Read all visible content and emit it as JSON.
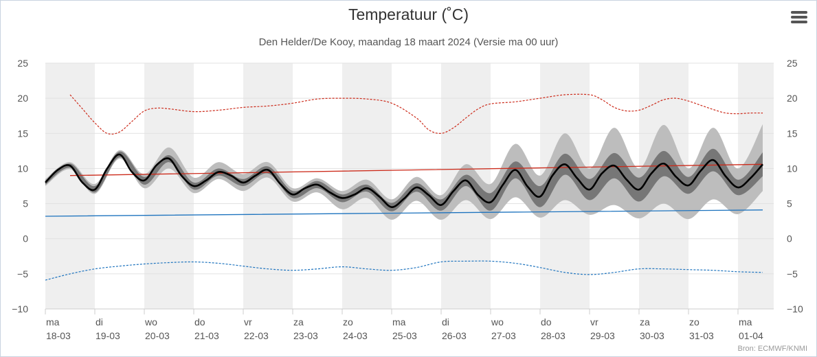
{
  "title": "Temperatuur (˚C)",
  "subtitle": "Den Helder/De Kooy, maandag 18 maart 2024 (Versie ma 00 uur)",
  "credit": "Bron: ECMWF/KNMI",
  "menu_icon": "hamburger-menu-icon",
  "colors": {
    "mean": "#000000",
    "band_inner": "#777777",
    "band_outer": "#bdbdbd",
    "max_extreme": "#cc2a1a",
    "min_extreme": "#1d73be",
    "climate_max": "#cc2a1a",
    "climate_min": "#1d73be",
    "stripe": "#efefef"
  },
  "chart_data": {
    "type": "line",
    "ylim": [
      -10,
      25
    ],
    "yticks": [
      -10,
      -5,
      0,
      5,
      10,
      15,
      20,
      25
    ],
    "x_range": [
      0,
      14.7
    ],
    "day_labels": [
      {
        "day": "ma",
        "date": "18-03"
      },
      {
        "day": "di",
        "date": "19-03"
      },
      {
        "day": "wo",
        "date": "20-03"
      },
      {
        "day": "do",
        "date": "21-03"
      },
      {
        "day": "vr",
        "date": "22-03"
      },
      {
        "day": "za",
        "date": "23-03"
      },
      {
        "day": "zo",
        "date": "24-03"
      },
      {
        "day": "ma",
        "date": "25-03"
      },
      {
        "day": "di",
        "date": "26-03"
      },
      {
        "day": "wo",
        "date": "27-03"
      },
      {
        "day": "do",
        "date": "28-03"
      },
      {
        "day": "vr",
        "date": "29-03"
      },
      {
        "day": "za",
        "date": "30-03"
      },
      {
        "day": "zo",
        "date": "31-03"
      },
      {
        "day": "ma",
        "date": "01-04"
      }
    ],
    "series": [
      {
        "key": "mean",
        "x": [
          0,
          0.25,
          0.5,
          0.75,
          1,
          1.25,
          1.5,
          1.75,
          2,
          2.25,
          2.5,
          2.75,
          3,
          3.25,
          3.5,
          3.75,
          4,
          4.25,
          4.5,
          4.75,
          5,
          5.25,
          5.5,
          5.75,
          6,
          6.25,
          6.5,
          6.75,
          7,
          7.25,
          7.5,
          7.75,
          8,
          8.25,
          8.5,
          8.75,
          9,
          9.25,
          9.5,
          9.75,
          10,
          10.25,
          10.5,
          10.75,
          11,
          11.25,
          11.5,
          11.75,
          12,
          12.25,
          12.5,
          12.75,
          13,
          13.25,
          13.5,
          13.75,
          14,
          14.25,
          14.5
        ],
        "y": [
          8.0,
          9.8,
          10.4,
          8.0,
          7.0,
          10.0,
          12.0,
          9.5,
          8.3,
          10.5,
          11.4,
          9.0,
          7.5,
          8.3,
          9.5,
          9.0,
          8.0,
          9.0,
          9.8,
          7.8,
          6.3,
          7.2,
          7.7,
          6.6,
          5.8,
          6.3,
          7.2,
          6.0,
          4.5,
          5.7,
          7.3,
          6.2,
          4.8,
          6.8,
          8.3,
          6.2,
          5.2,
          7.7,
          9.8,
          7.4,
          6.0,
          9.0,
          10.6,
          8.6,
          7.0,
          9.3,
          10.4,
          8.4,
          7.0,
          9.3,
          10.7,
          8.8,
          7.6,
          9.7,
          11.2,
          8.9,
          7.3,
          8.6,
          10.6
        ]
      },
      {
        "key": "inner_band_upper",
        "x": [
          0,
          0.5,
          1,
          1.5,
          2,
          2.5,
          3,
          3.5,
          4,
          4.5,
          5,
          5.5,
          6,
          6.5,
          7,
          7.5,
          8,
          8.5,
          9,
          9.5,
          10,
          10.5,
          11,
          11.5,
          12,
          12.5,
          13,
          13.5,
          14,
          14.5
        ],
        "y": [
          8.3,
          10.7,
          7.5,
          12.4,
          8.8,
          11.9,
          8.0,
          10.0,
          8.5,
          10.3,
          6.8,
          8.2,
          6.3,
          7.7,
          5.1,
          7.9,
          5.6,
          9.1,
          6.5,
          11.0,
          7.5,
          12.1,
          8.5,
          12.2,
          8.7,
          12.5,
          8.8,
          12.8,
          8.4,
          12.3
        ]
      },
      {
        "key": "inner_band_lower",
        "x": [
          0,
          0.5,
          1,
          1.5,
          2,
          2.5,
          3,
          3.5,
          4,
          4.5,
          5,
          5.5,
          6,
          6.5,
          7,
          7.5,
          8,
          8.5,
          9,
          9.5,
          10,
          10.5,
          11,
          11.5,
          12,
          12.5,
          13,
          13.5,
          14,
          14.5
        ],
        "y": [
          7.7,
          10.1,
          6.6,
          11.6,
          7.7,
          10.9,
          7.0,
          9.0,
          7.5,
          9.3,
          5.8,
          7.2,
          5.2,
          6.7,
          3.9,
          6.7,
          4.0,
          7.5,
          4.0,
          8.6,
          4.5,
          9.1,
          5.5,
          8.6,
          5.3,
          8.9,
          6.4,
          9.6,
          6.2,
          8.9
        ]
      },
      {
        "key": "outer_band_upper",
        "x": [
          0,
          0.5,
          1,
          1.5,
          2,
          2.5,
          3,
          3.5,
          4,
          4.5,
          5,
          5.5,
          6,
          6.5,
          7,
          7.5,
          8,
          8.5,
          9,
          9.5,
          10,
          10.5,
          11,
          11.5,
          12,
          12.5,
          13,
          13.5,
          14,
          14.5
        ],
        "y": [
          8.5,
          10.9,
          7.8,
          12.6,
          9.2,
          13.0,
          8.7,
          10.9,
          9.2,
          10.9,
          7.2,
          8.6,
          6.8,
          8.4,
          5.6,
          8.8,
          6.2,
          10.6,
          7.8,
          13.5,
          9.0,
          15.0,
          10.0,
          15.8,
          10.0,
          16.2,
          10.0,
          15.8,
          10.0,
          16.3
        ]
      },
      {
        "key": "outer_band_lower",
        "x": [
          0,
          0.5,
          1,
          1.5,
          2,
          2.5,
          3,
          3.5,
          4,
          4.5,
          5,
          5.5,
          6,
          6.5,
          7,
          7.5,
          8,
          8.5,
          9,
          9.5,
          10,
          10.5,
          11,
          11.5,
          12,
          12.5,
          13,
          13.5,
          14,
          14.5
        ],
        "y": [
          7.5,
          9.9,
          6.4,
          11.4,
          7.2,
          10.0,
          6.5,
          8.5,
          6.8,
          8.7,
          5.3,
          6.6,
          4.2,
          5.8,
          2.7,
          5.4,
          2.7,
          5.5,
          2.8,
          5.9,
          3.0,
          5.5,
          3.4,
          4.8,
          2.9,
          5.0,
          2.8,
          5.6,
          3.5,
          6.8
        ]
      },
      {
        "key": "max_extreme",
        "x": [
          0.5,
          0.75,
          1,
          1.25,
          1.5,
          1.75,
          2,
          2.25,
          2.5,
          3,
          3.5,
          4,
          4.5,
          5,
          5.5,
          6,
          6.5,
          7,
          7.5,
          7.75,
          8,
          8.25,
          8.5,
          8.75,
          9,
          9.5,
          10,
          10.5,
          11,
          11.25,
          11.5,
          11.75,
          12,
          12.25,
          12.5,
          12.75,
          13,
          13.25,
          13.5,
          13.75,
          14,
          14.25,
          14.5
        ],
        "y": [
          20.5,
          18.5,
          16.5,
          15.0,
          15.2,
          16.7,
          18.2,
          18.6,
          18.5,
          18.1,
          18.3,
          18.7,
          18.9,
          19.3,
          19.9,
          20.0,
          19.9,
          19.3,
          17.2,
          15.5,
          15.0,
          15.8,
          17.2,
          18.5,
          19.2,
          19.5,
          20.0,
          20.5,
          20.5,
          19.8,
          18.7,
          18.2,
          18.3,
          19.0,
          19.8,
          20.0,
          19.6,
          19.0,
          18.4,
          17.9,
          17.8,
          17.9,
          17.9
        ]
      },
      {
        "key": "min_extreme",
        "x": [
          0,
          0.5,
          1,
          1.5,
          2,
          2.5,
          3,
          3.5,
          4,
          4.5,
          5,
          5.5,
          6,
          6.5,
          7,
          7.5,
          8,
          8.5,
          9,
          9.5,
          10,
          10.5,
          11,
          11.5,
          12,
          12.5,
          13,
          13.5,
          14,
          14.5
        ],
        "y": [
          -5.9,
          -5.0,
          -4.3,
          -3.9,
          -3.6,
          -3.4,
          -3.3,
          -3.5,
          -3.9,
          -4.3,
          -4.5,
          -4.3,
          -4.0,
          -4.3,
          -4.5,
          -4.1,
          -3.3,
          -3.2,
          -3.2,
          -3.5,
          -4.1,
          -4.8,
          -5.1,
          -4.8,
          -4.3,
          -4.3,
          -4.4,
          -4.5,
          -4.7,
          -4.8
        ]
      },
      {
        "key": "climate_max",
        "x": [
          0.5,
          14.5
        ],
        "y": [
          9.0,
          10.6
        ]
      },
      {
        "key": "climate_min",
        "x": [
          0,
          14.5
        ],
        "y": [
          3.2,
          4.1
        ]
      }
    ],
    "grid": true
  }
}
